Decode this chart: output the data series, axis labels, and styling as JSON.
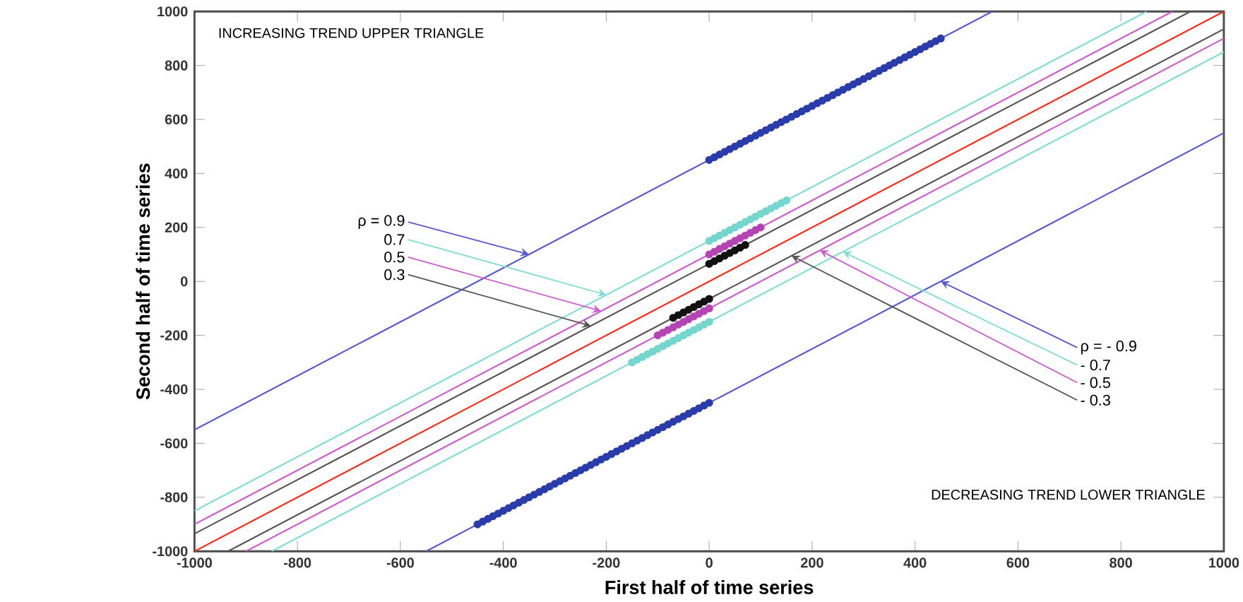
{
  "chart_data": {
    "type": "line",
    "xlabel": "First half of time series",
    "ylabel": "Second half of time series",
    "xlim": [
      -1000,
      1000
    ],
    "ylim": [
      -1000,
      1000
    ],
    "xticks": [
      -1000,
      -800,
      -600,
      -400,
      -200,
      0,
      200,
      400,
      600,
      800,
      1000
    ],
    "yticks": [
      -1000,
      -800,
      -600,
      -400,
      -200,
      0,
      200,
      400,
      600,
      800,
      1000
    ],
    "grid": false,
    "series": [
      {
        "color": "#5a5ad0",
        "x": [
          -1000,
          550
        ],
        "values": [
          -550,
          1000
        ]
      },
      {
        "color": "#80dcd4",
        "x": [
          -1000,
          850
        ],
        "values": [
          -850,
          1000
        ]
      },
      {
        "color": "#cc5ccc",
        "x": [
          -1000,
          900
        ],
        "values": [
          -900,
          1000
        ]
      },
      {
        "color": "#555555",
        "x": [
          -1000,
          935
        ],
        "values": [
          -935,
          1000
        ]
      },
      {
        "color": "#5a5ad0",
        "x": [
          -550,
          1000
        ],
        "values": [
          -1000,
          550
        ]
      },
      {
        "color": "#80dcd4",
        "x": [
          -850,
          1000
        ],
        "values": [
          -1000,
          850
        ]
      },
      {
        "color": "#cc5ccc",
        "x": [
          -900,
          1000
        ],
        "values": [
          -1000,
          900
        ]
      },
      {
        "color": "#555555",
        "x": [
          -935,
          1000
        ],
        "values": [
          -1000,
          935
        ]
      },
      {
        "color": "#ff2a1a",
        "x": [
          -1000,
          1000
        ],
        "values": [
          -1000,
          1000
        ]
      },
      {
        "type": "scatter",
        "marker": "circle",
        "color": "#2a3caa",
        "x": [
          0,
          10,
          20,
          30,
          40,
          50,
          60,
          70,
          80,
          90,
          100,
          110,
          120,
          130,
          140,
          150,
          160,
          170,
          180,
          190,
          200,
          210,
          220,
          230,
          240,
          250,
          260,
          270,
          280,
          290,
          300,
          310,
          320,
          330,
          340,
          350,
          360,
          370,
          380,
          390,
          400,
          410,
          420,
          430,
          440,
          450
        ],
        "values": [
          450,
          460,
          470,
          480,
          490,
          500,
          510,
          520,
          530,
          540,
          550,
          560,
          570,
          580,
          590,
          600,
          610,
          620,
          630,
          640,
          650,
          660,
          670,
          680,
          690,
          700,
          710,
          720,
          730,
          740,
          750,
          760,
          770,
          780,
          790,
          800,
          810,
          820,
          830,
          840,
          850,
          860,
          870,
          880,
          890,
          900
        ]
      },
      {
        "type": "scatter",
        "marker": "circle",
        "color": "#2a3caa",
        "x": [
          -450,
          -440,
          -430,
          -420,
          -410,
          -400,
          -390,
          -380,
          -370,
          -360,
          -350,
          -340,
          -330,
          -320,
          -310,
          -300,
          -290,
          -280,
          -270,
          -260,
          -250,
          -240,
          -230,
          -220,
          -210,
          -200,
          -190,
          -180,
          -170,
          -160,
          -150,
          -140,
          -130,
          -120,
          -110,
          -100,
          -90,
          -80,
          -70,
          -60,
          -50,
          -40,
          -30,
          -20,
          -10,
          0
        ],
        "values": [
          -900,
          -890,
          -880,
          -870,
          -860,
          -850,
          -840,
          -830,
          -820,
          -810,
          -800,
          -790,
          -780,
          -770,
          -760,
          -750,
          -740,
          -730,
          -720,
          -710,
          -700,
          -690,
          -680,
          -670,
          -660,
          -650,
          -640,
          -630,
          -620,
          -610,
          -600,
          -590,
          -580,
          -570,
          -560,
          -550,
          -540,
          -530,
          -520,
          -510,
          -500,
          -490,
          -480,
          -470,
          -460,
          -450
        ]
      },
      {
        "type": "scatter",
        "marker": "circle",
        "color": "#74d6cc",
        "x": [
          0,
          10,
          20,
          30,
          40,
          50,
          60,
          70,
          80,
          90,
          100,
          110,
          120,
          130,
          140,
          150
        ],
        "values": [
          150,
          160,
          170,
          180,
          190,
          200,
          210,
          220,
          230,
          240,
          250,
          260,
          270,
          280,
          290,
          300
        ]
      },
      {
        "type": "scatter",
        "marker": "circle",
        "color": "#74d6cc",
        "x": [
          -150,
          -140,
          -130,
          -120,
          -110,
          -100,
          -90,
          -80,
          -70,
          -60,
          -50,
          -40,
          -30,
          -20,
          -10,
          0
        ],
        "values": [
          -300,
          -290,
          -280,
          -270,
          -260,
          -250,
          -240,
          -230,
          -220,
          -210,
          -200,
          -190,
          -180,
          -170,
          -160,
          -150
        ]
      },
      {
        "type": "scatter",
        "marker": "circle",
        "color": "#b444b4",
        "x": [
          0,
          10,
          20,
          30,
          40,
          50,
          60,
          70,
          80,
          90,
          100
        ],
        "values": [
          100,
          110,
          120,
          130,
          140,
          150,
          160,
          170,
          180,
          190,
          200
        ]
      },
      {
        "type": "scatter",
        "marker": "circle",
        "color": "#b444b4",
        "x": [
          -100,
          -90,
          -80,
          -70,
          -60,
          -50,
          -40,
          -30,
          -20,
          -10,
          0
        ],
        "values": [
          -200,
          -190,
          -180,
          -170,
          -160,
          -150,
          -140,
          -130,
          -120,
          -110,
          -100
        ]
      },
      {
        "type": "scatter",
        "marker": "circle",
        "color": "#111111",
        "x": [
          0,
          10,
          20,
          30,
          40,
          50,
          60,
          70
        ],
        "values": [
          65,
          75,
          85,
          95,
          105,
          115,
          125,
          135
        ]
      },
      {
        "type": "scatter",
        "marker": "circle",
        "color": "#111111",
        "x": [
          -70,
          -60,
          -50,
          -40,
          -30,
          -20,
          -10,
          0
        ],
        "values": [
          -135,
          -125,
          -115,
          -105,
          -95,
          -85,
          -75,
          -65
        ]
      }
    ],
    "annotations": [
      "INCREASING TREND UPPER TRIANGLE",
      "DECREASING TREND LOWER TRIANGLE",
      {
        "text": "ρ = 0.9",
        "x": -350,
        "y": 100
      },
      {
        "text": "0.7",
        "x": -200,
        "y": -50
      },
      {
        "text": "0.5",
        "x": -210,
        "y": -110
      },
      {
        "text": "0.3",
        "x": -230,
        "y": -165
      },
      {
        "text": "ρ = - 0.9",
        "x": 450,
        "y": 0
      },
      {
        "text": "- 0.7",
        "x": 260,
        "y": 110
      },
      {
        "text": "- 0.5",
        "x": 215,
        "y": 115
      },
      {
        "text": "- 0.3",
        "x": 160,
        "y": 95
      }
    ]
  }
}
